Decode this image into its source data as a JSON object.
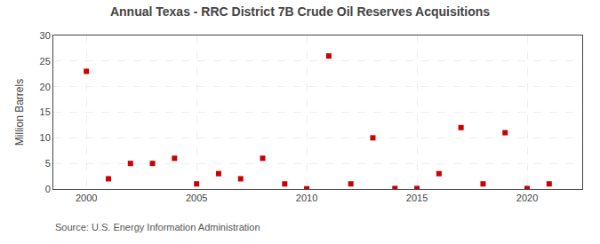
{
  "chart_data": {
    "type": "scatter",
    "title": "Annual Texas - RRC District 7B Crude Oil Reserves Acquisitions",
    "y_label": "Million Barrels",
    "annotations": [
      "Source: U.S. Energy Information Administration"
    ],
    "x": [
      2000,
      2001,
      2002,
      2003,
      2004,
      2005,
      2006,
      2007,
      2008,
      2009,
      2010,
      2011,
      2012,
      2013,
      2014,
      2015,
      2016,
      2017,
      2018,
      2019,
      2020,
      2021
    ],
    "values": [
      23,
      2,
      5,
      5,
      6,
      1,
      3,
      2,
      6,
      1,
      0.05,
      26,
      1,
      10,
      0.1,
      0.1,
      3,
      12,
      1,
      11,
      0.1,
      1
    ],
    "color": "#cc0000",
    "marker": "square",
    "xlim": [
      1998.5,
      2022.5
    ],
    "ylim": [
      0,
      30
    ],
    "xticks": [
      2000,
      2005,
      2010,
      2015,
      2020
    ],
    "yticks": [
      0,
      5,
      10,
      15,
      20,
      25,
      30
    ],
    "grid": true
  }
}
